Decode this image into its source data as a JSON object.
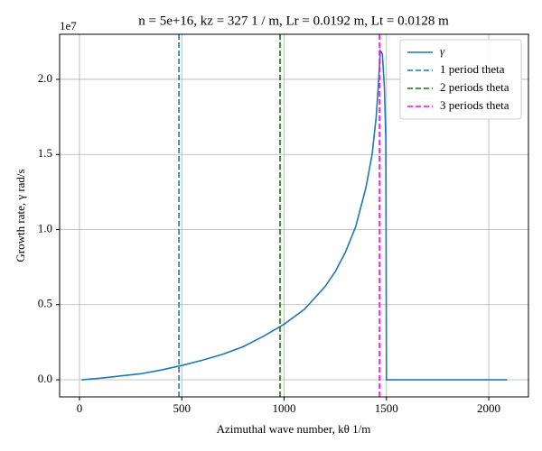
{
  "chart_data": {
    "type": "line",
    "title": "n = 5e+16, kz =  327 1 / m, Lr = 0.0192 m, Lt = 0.0128 m",
    "x_label": "Azimuthal wave number, kθ 1/m",
    "y_label": "Growth rate, γ rad/s",
    "y_offset_label": "1e7",
    "x": [
      10,
      100,
      200,
      300,
      400,
      500,
      600,
      700,
      800,
      900,
      1000,
      1100,
      1200,
      1250,
      1300,
      1350,
      1400,
      1430,
      1450,
      1460,
      1470,
      1480,
      1490,
      1497,
      1500,
      1600,
      1700,
      1800,
      1900,
      2000,
      2090
    ],
    "series": [
      {
        "name": "γ",
        "color": "#1f77b4",
        "values": [
          0,
          0.01,
          0.025,
          0.04,
          0.065,
          0.095,
          0.13,
          0.17,
          0.22,
          0.29,
          0.37,
          0.47,
          0.62,
          0.72,
          0.85,
          1.02,
          1.28,
          1.5,
          1.75,
          1.95,
          2.19,
          2.17,
          1.95,
          1.6,
          0,
          0,
          0,
          0,
          0,
          0,
          0
        ]
      }
    ],
    "vlines": [
      {
        "name": "1 period theta",
        "color": "#1f77b4",
        "x": 486
      },
      {
        "name": "2 periods theta",
        "color": "#008000",
        "x": 980
      },
      {
        "name": "3 periods theta",
        "color": "#ff00ff",
        "x": 1466
      }
    ],
    "xlim": [
      -97,
      2194
    ],
    "ylim": [
      -0.114,
      2.3
    ],
    "xticks": [
      0,
      500,
      1000,
      1500,
      2000
    ],
    "yticks": [
      {
        "value": 0,
        "label": "0.0"
      },
      {
        "value": 0.5,
        "label": "0.5"
      },
      {
        "value": 1,
        "label": "1.0"
      },
      {
        "value": 1.5,
        "label": "1.5"
      },
      {
        "value": 2,
        "label": "2.0"
      }
    ],
    "grid": true,
    "legend": "upper right"
  }
}
